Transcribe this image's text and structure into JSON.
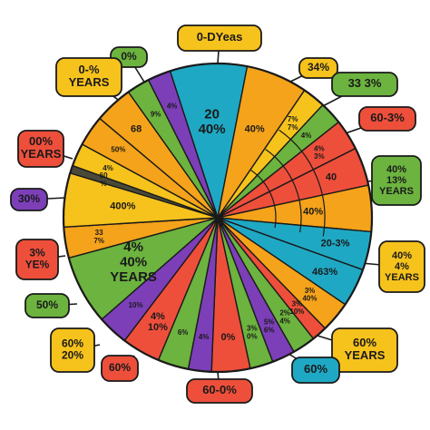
{
  "colors": {
    "blue": "#1fa8c4",
    "orange": "#f5a31a",
    "green": "#6cb33f",
    "red": "#ee4f3b",
    "purple": "#7c3fb8",
    "yellow": "#f6c21c",
    "dark": "#4a4a3a",
    "outline": "#1a1a1a"
  },
  "chart_data": {
    "type": "pie",
    "title": "",
    "slices": [
      {
        "color": "blue",
        "value": 10,
        "label": "20 40%"
      },
      {
        "color": "orange",
        "value": 8,
        "label": "40%"
      },
      {
        "color": "yellow",
        "value": 3,
        "label": "7% 7%"
      },
      {
        "color": "green",
        "value": 3,
        "label": "4%"
      },
      {
        "color": "red",
        "value": 4,
        "label": "4% 3%"
      },
      {
        "color": "red",
        "value": 5,
        "label": "40"
      },
      {
        "color": "orange",
        "value": 6,
        "label": "40%"
      },
      {
        "color": "blue",
        "value": 5,
        "label": "20-3%"
      },
      {
        "color": "blue",
        "value": 5,
        "label": "463%"
      },
      {
        "color": "orange",
        "value": 4,
        "label": "3% 40%"
      },
      {
        "color": "red",
        "value": 2,
        "label": "3% 10%"
      },
      {
        "color": "green",
        "value": 3,
        "label": "2% 4%"
      },
      {
        "color": "purple",
        "value": 3,
        "label": "5% 6%"
      },
      {
        "color": "green",
        "value": 3,
        "label": "3% 0%"
      },
      {
        "color": "red",
        "value": 5,
        "label": "0%"
      },
      {
        "color": "purple",
        "value": 3,
        "label": "4%"
      },
      {
        "color": "green",
        "value": 4,
        "label": "6%"
      },
      {
        "color": "red",
        "value": 5,
        "label": "4% 10%"
      },
      {
        "color": "purple",
        "value": 4,
        "label": "10%"
      },
      {
        "color": "green",
        "value": 9,
        "label": "4% 40% YEARS"
      },
      {
        "color": "orange",
        "value": 4,
        "label": "33 7%"
      },
      {
        "color": "yellow",
        "value": 7,
        "label": "400%"
      },
      {
        "color": "dark",
        "value": 1,
        "label": "60 %"
      },
      {
        "color": "yellow",
        "value": 3,
        "label": "4%"
      },
      {
        "color": "orange",
        "value": 4,
        "label": "50%"
      },
      {
        "color": "orange",
        "value": 5,
        "label": "68"
      },
      {
        "color": "green",
        "value": 3,
        "label": "9%"
      },
      {
        "color": "purple",
        "value": 3,
        "label": "4%"
      }
    ],
    "callouts": [
      {
        "text": "0-DYeas",
        "color": "yellow"
      },
      {
        "text": "0% ",
        "color": "green"
      },
      {
        "text": "0-% YEARS",
        "color": "yellow"
      },
      {
        "text": "34%",
        "color": "yellow"
      },
      {
        "text": "33 3%",
        "color": "green"
      },
      {
        "text": "60-3%",
        "color": "red"
      },
      {
        "text": "00% YEARS",
        "color": "red"
      },
      {
        "text": "40% 13% YEARS",
        "color": "green"
      },
      {
        "text": "30%",
        "color": "purple"
      },
      {
        "text": "3% YE%",
        "color": "red"
      },
      {
        "text": "40% 4% YEARS",
        "color": "yellow"
      },
      {
        "text": "50%",
        "color": "green"
      },
      {
        "text": "60% 20%",
        "color": "yellow"
      },
      {
        "text": "60%",
        "color": "red"
      },
      {
        "text": "60-0%",
        "color": "red"
      },
      {
        "text": "60% YEARS",
        "color": "yellow"
      },
      {
        "text": "60%",
        "color": "blue"
      }
    ]
  }
}
